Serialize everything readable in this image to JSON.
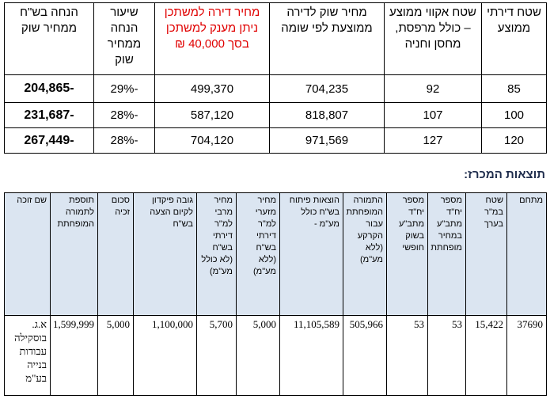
{
  "table1": {
    "header": [
      "שטח דירתי ממוצע",
      "שטח אקווי ממוצע – כולל מרפסת, מחסן וחניה",
      "מחיר שוק לדירה ממוצעת לפי שומה",
      "מחיר דירה למשתכן ניתן מענק למשתכן בסך 40,000 ₪",
      "שיעור הנחה ממחיר שוק",
      "הנחה בש\"ח ממחיר שוק"
    ],
    "rows": [
      [
        "85",
        "92",
        "704,235",
        "499,370",
        "-29%",
        "-204,865"
      ],
      [
        "100",
        "107",
        "818,807",
        "587,120",
        "-28%",
        "-231,687"
      ],
      [
        "120",
        "127",
        "971,569",
        "704,120",
        "-28%",
        "-267,449"
      ]
    ]
  },
  "results_title": "תוצאות המכרז:",
  "table2": {
    "header": [
      "מתחם",
      "שטח במ\"ר בערך",
      "מספר יח\"ד מתב\"ע במחיר מופחתת",
      "מספר יח\"ד מתב\"ע בשוק חופשי",
      "התמורה המופחתת עבור הקרקע (ללא מע\"מ)",
      "הוצאות פיתוח בש\"ח כולל מע\"מ -",
      "מחיר מזערי למ\"ר דירתי בש\"ח (ללא מע\"מ)",
      "מחיר מרבי למ\"ר דירתי בש\"ח (לא כולל מע\"מ)",
      "גובה פיקדון לקיום הצעה בש\"ח",
      "סכום זכיה",
      "תוספת לתמורה המופחתת",
      "שם זוכה"
    ],
    "rows": [
      [
        "37690",
        "15,422",
        "53",
        "53",
        "505,966",
        "11,105,589",
        "5,000",
        "5,700",
        "1,100,000",
        "5,000",
        "1,599,999",
        "א.ג. בוסקילה עבודות בנייה בע\"מ"
      ]
    ]
  }
}
